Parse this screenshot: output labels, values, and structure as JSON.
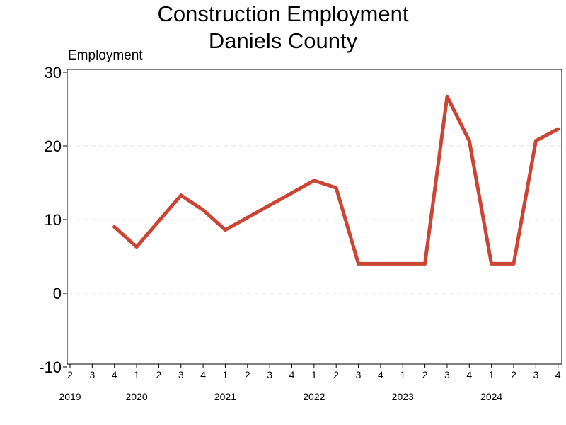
{
  "chart_data": {
    "type": "line",
    "title": "Construction Employment",
    "subtitle": "Daniels County",
    "ylabel": "Employment",
    "xlabel": "",
    "ylim": [
      -10,
      30
    ],
    "yticks": [
      -10,
      0,
      10,
      20,
      30
    ],
    "grid": "horizontal dashed",
    "color": "#cc4433",
    "x_quarters": [
      "2",
      "3",
      "4",
      "1",
      "2",
      "3",
      "4",
      "1",
      "2",
      "3",
      "4",
      "1",
      "2",
      "3",
      "4",
      "1",
      "2",
      "3",
      "4",
      "1",
      "2",
      "3",
      "4"
    ],
    "x_years": [
      {
        "label": "2019",
        "quarter_index": 0
      },
      {
        "label": "2020",
        "quarter_index": 3
      },
      {
        "label": "2021",
        "quarter_index": 7
      },
      {
        "label": "2022",
        "quarter_index": 11
      },
      {
        "label": "2023",
        "quarter_index": 15
      },
      {
        "label": "2024",
        "quarter_index": 19
      }
    ],
    "series": [
      {
        "points": [
          {
            "period": "2019 Q4",
            "quarter_index": 2,
            "y": 9
          },
          {
            "period": "2020 Q1",
            "quarter_index": 3,
            "y": 6.3
          },
          {
            "period": "2020 Q2",
            "quarter_index": 4,
            "y": 9.8
          },
          {
            "period": "2020 Q3",
            "quarter_index": 5,
            "y": 13.3
          },
          {
            "period": "2020 Q4",
            "quarter_index": 6,
            "y": 11.3
          },
          {
            "period": "2021 Q1",
            "quarter_index": 7,
            "y": 8.6
          },
          {
            "period": "2022 Q1",
            "quarter_index": 11,
            "y": 15.3
          },
          {
            "period": "2022 Q2",
            "quarter_index": 12,
            "y": 14.3
          },
          {
            "period": "2022 Q3",
            "quarter_index": 13,
            "y": 4
          },
          {
            "period": "2022 Q4",
            "quarter_index": 14,
            "y": 4
          },
          {
            "period": "2023 Q1",
            "quarter_index": 15,
            "y": 4
          },
          {
            "period": "2023 Q2",
            "quarter_index": 16,
            "y": 4
          },
          {
            "period": "2023 Q3",
            "quarter_index": 17,
            "y": 26.7
          },
          {
            "period": "2023 Q4",
            "quarter_index": 18,
            "y": 20.7
          },
          {
            "period": "2024 Q1",
            "quarter_index": 19,
            "y": 4
          },
          {
            "period": "2024 Q2",
            "quarter_index": 20,
            "y": 4
          },
          {
            "period": "2024 Q3",
            "quarter_index": 21,
            "y": 20.7
          },
          {
            "period": "2024 Q4",
            "quarter_index": 22,
            "y": 22.3
          }
        ]
      }
    ]
  }
}
